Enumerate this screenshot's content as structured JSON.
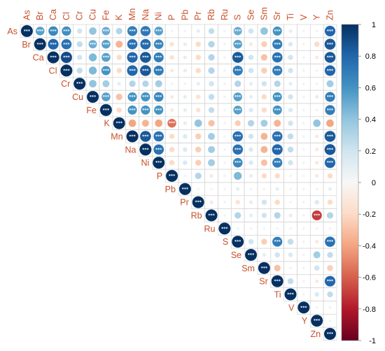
{
  "chart_data": {
    "type": "heatmap",
    "subtype": "correlation-matrix-upper-circles",
    "variables": [
      "As",
      "Br",
      "Ca",
      "Cl",
      "Cr",
      "Cu",
      "Fe",
      "K",
      "Mn",
      "Na",
      "Ni",
      "P",
      "Pb",
      "Pr",
      "Rb",
      "Ru",
      "S",
      "Se",
      "Sm",
      "Sr",
      "Ti",
      "V",
      "Y",
      "Zn"
    ],
    "values": [
      [
        1,
        0.55,
        0.65,
        0.62,
        0.2,
        0.4,
        0.5,
        0.3,
        0.7,
        0.72,
        0.55,
        0.05,
        0.05,
        0.1,
        0.25,
        0.05,
        0.5,
        0.2,
        0.4,
        0.6,
        0.1,
        0.05,
        0.05,
        0.8
      ],
      [
        0,
        1,
        0.8,
        0.75,
        0.25,
        0.5,
        0.55,
        -0.35,
        0.75,
        0.78,
        0.65,
        -0.15,
        0.1,
        -0.2,
        0.3,
        0.05,
        0.55,
        -0.1,
        -0.25,
        0.7,
        0.15,
        -0.05,
        -0.2,
        0.85
      ],
      [
        0,
        0,
        1,
        0.9,
        0.2,
        0.45,
        0.55,
        -0.2,
        0.8,
        0.85,
        0.7,
        -0.15,
        0.1,
        -0.2,
        0.3,
        0.05,
        0.85,
        0.2,
        -0.3,
        0.75,
        0.2,
        0.05,
        -0.1,
        0.85
      ],
      [
        0,
        0,
        0,
        1,
        0.25,
        0.45,
        0.6,
        -0.2,
        0.8,
        0.85,
        0.7,
        -0.1,
        0.1,
        -0.2,
        0.3,
        0.05,
        0.7,
        0.2,
        -0.25,
        0.7,
        0.2,
        0.05,
        -0.05,
        0.8
      ],
      [
        0,
        0,
        0,
        0,
        1,
        0.4,
        0.35,
        0.1,
        0.3,
        0.3,
        0.35,
        0.05,
        0.05,
        0.1,
        0.2,
        0.05,
        0.3,
        0.1,
        0.2,
        0.3,
        0.1,
        0.05,
        0.05,
        0.35
      ],
      [
        0,
        0,
        0,
        0,
        0,
        1,
        0.55,
        -0.3,
        0.6,
        0.6,
        0.65,
        -0.1,
        0.1,
        -0.15,
        0.25,
        0.05,
        0.55,
        0.1,
        -0.2,
        0.6,
        0.2,
        0.05,
        0.1,
        0.7
      ],
      [
        0,
        0,
        0,
        0,
        0,
        0,
        1,
        -0.2,
        0.6,
        0.6,
        0.6,
        -0.1,
        0.1,
        -0.15,
        0.25,
        0.05,
        0.55,
        0.15,
        -0.2,
        0.6,
        0.15,
        0.05,
        0.05,
        0.7
      ],
      [
        0,
        0,
        0,
        0,
        0,
        0,
        0,
        1,
        -0.4,
        -0.35,
        -0.4,
        -0.55,
        0.1,
        0.4,
        -0.3,
        0.05,
        -0.25,
        0.3,
        0.35,
        -0.35,
        0.2,
        0.05,
        0.4,
        -0.4
      ],
      [
        0,
        0,
        0,
        0,
        0,
        0,
        0,
        0,
        1,
        0.85,
        0.75,
        -0.2,
        0.15,
        -0.25,
        0.35,
        0.05,
        0.75,
        0.2,
        -0.35,
        0.75,
        0.25,
        0.05,
        -0.1,
        0.85
      ],
      [
        0,
        0,
        0,
        0,
        0,
        0,
        0,
        0,
        0,
        1,
        0.75,
        -0.2,
        0.15,
        -0.25,
        0.35,
        0.05,
        0.75,
        0.15,
        -0.35,
        0.8,
        0.25,
        0.05,
        -0.1,
        0.85
      ],
      [
        0,
        0,
        0,
        0,
        0,
        0,
        0,
        0,
        0,
        0,
        1,
        -0.2,
        0.15,
        -0.25,
        0.35,
        0.05,
        0.65,
        0.15,
        -0.3,
        0.7,
        0.2,
        0.05,
        -0.1,
        0.8
      ],
      [
        0,
        0,
        0,
        0,
        0,
        0,
        0,
        0,
        0,
        0,
        0,
        1,
        0.05,
        0.3,
        -0.1,
        0.05,
        0.45,
        0.1,
        -0.2,
        -0.2,
        0.05,
        0.05,
        -0.1,
        -0.2
      ],
      [
        0,
        0,
        0,
        0,
        0,
        0,
        0,
        0,
        0,
        0,
        0,
        0,
        1,
        0.05,
        0.05,
        0.05,
        0.1,
        0.05,
        0.05,
        0.1,
        0.05,
        0.05,
        0.05,
        0.1
      ],
      [
        0,
        0,
        0,
        0,
        0,
        0,
        0,
        0,
        0,
        0,
        0,
        0,
        0,
        1,
        -0.1,
        0.05,
        -0.15,
        0.1,
        0.2,
        -0.2,
        0.05,
        0.05,
        0.15,
        -0.2
      ],
      [
        0,
        0,
        0,
        0,
        0,
        0,
        0,
        0,
        0,
        0,
        0,
        0,
        0,
        0,
        1,
        0.05,
        0.3,
        0.1,
        0.2,
        0.3,
        0.1,
        0.05,
        -0.7,
        0.3
      ],
      [
        0,
        0,
        0,
        0,
        0,
        0,
        0,
        0,
        0,
        0,
        0,
        0,
        0,
        0,
        0,
        1,
        0.05,
        0.05,
        0.05,
        0.05,
        0.05,
        0.05,
        0.05,
        0.05
      ],
      [
        0,
        0,
        0,
        0,
        0,
        0,
        0,
        0,
        0,
        0,
        0,
        0,
        0,
        0,
        0,
        0,
        1,
        0.2,
        -0.25,
        0.7,
        0.25,
        0.05,
        -0.1,
        0.75
      ],
      [
        0,
        0,
        0,
        0,
        0,
        0,
        0,
        0,
        0,
        0,
        0,
        0,
        0,
        0,
        0,
        0,
        0,
        1,
        0.1,
        0.2,
        0.15,
        0.05,
        0.35,
        0.25
      ],
      [
        0,
        0,
        0,
        0,
        0,
        0,
        0,
        0,
        0,
        0,
        0,
        0,
        0,
        0,
        0,
        0,
        0,
        0,
        1,
        -0.3,
        0.05,
        0.05,
        0.2,
        -0.25
      ],
      [
        0,
        0,
        0,
        0,
        0,
        0,
        0,
        0,
        0,
        0,
        0,
        0,
        0,
        0,
        0,
        0,
        0,
        0,
        0,
        1,
        0.25,
        0.05,
        -0.1,
        0.8
      ],
      [
        0,
        0,
        0,
        0,
        0,
        0,
        0,
        0,
        0,
        0,
        0,
        0,
        0,
        0,
        0,
        0,
        0,
        0,
        0,
        0,
        1,
        0.05,
        0.15,
        0.25
      ],
      [
        0,
        0,
        0,
        0,
        0,
        0,
        0,
        0,
        0,
        0,
        0,
        0,
        0,
        0,
        0,
        0,
        0,
        0,
        0,
        0,
        0,
        1,
        0.05,
        0.05
      ],
      [
        0,
        0,
        0,
        0,
        0,
        0,
        0,
        0,
        0,
        0,
        0,
        0,
        0,
        0,
        0,
        0,
        0,
        0,
        0,
        0,
        0,
        0,
        1,
        0.05
      ],
      [
        0,
        0,
        0,
        0,
        0,
        0,
        0,
        0,
        0,
        0,
        0,
        0,
        0,
        0,
        0,
        0,
        0,
        0,
        0,
        0,
        0,
        0,
        0,
        1
      ]
    ],
    "significance_marker": "***",
    "colorbar": {
      "ticks": [
        "1",
        "0.8",
        "0.6",
        "0.4",
        "0.2",
        "0",
        "-0.2",
        "-0.4",
        "-0.6",
        "-0.8",
        "-1"
      ],
      "range": [
        -1,
        1
      ],
      "color_neg": "#67001f",
      "color_mid": "#f7f7f7",
      "color_pos": "#053061"
    },
    "title": "",
    "xlabel": "",
    "ylabel": "",
    "grid": true,
    "label_color": "#c8502a"
  }
}
